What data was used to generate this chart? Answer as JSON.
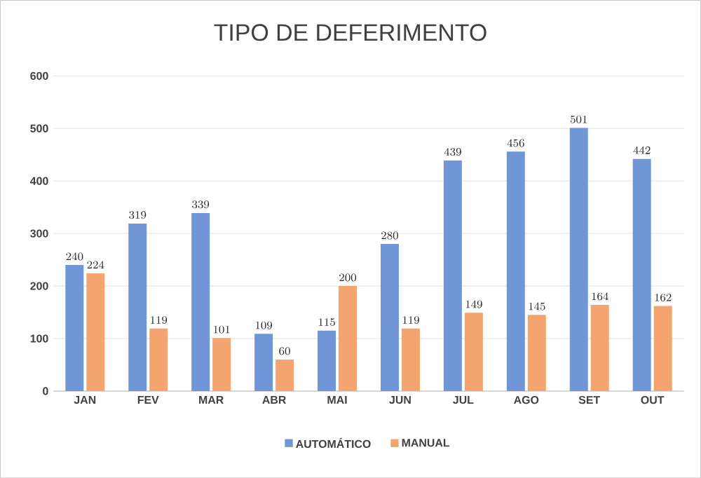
{
  "chart_data": {
    "type": "bar",
    "title": "TIPO DE DEFERIMENTO",
    "categories": [
      "JAN",
      "FEV",
      "MAR",
      "ABR",
      "MAI",
      "JUN",
      "JUL",
      "AGO",
      "SET",
      "OUT"
    ],
    "series": [
      {
        "name": "AUTOMÁTICO",
        "color": "#7096d8",
        "values": [
          240,
          319,
          339,
          109,
          115,
          280,
          439,
          456,
          501,
          442
        ]
      },
      {
        "name": "MANUAL",
        "color": "#f4a46f",
        "values": [
          224,
          119,
          101,
          60,
          200,
          119,
          149,
          145,
          164,
          162
        ]
      }
    ],
    "ylim": [
      0,
      600
    ],
    "yticks": [
      0,
      100,
      200,
      300,
      400,
      500,
      600
    ],
    "grid": "y",
    "legend": "bottom",
    "data_labels": true
  }
}
